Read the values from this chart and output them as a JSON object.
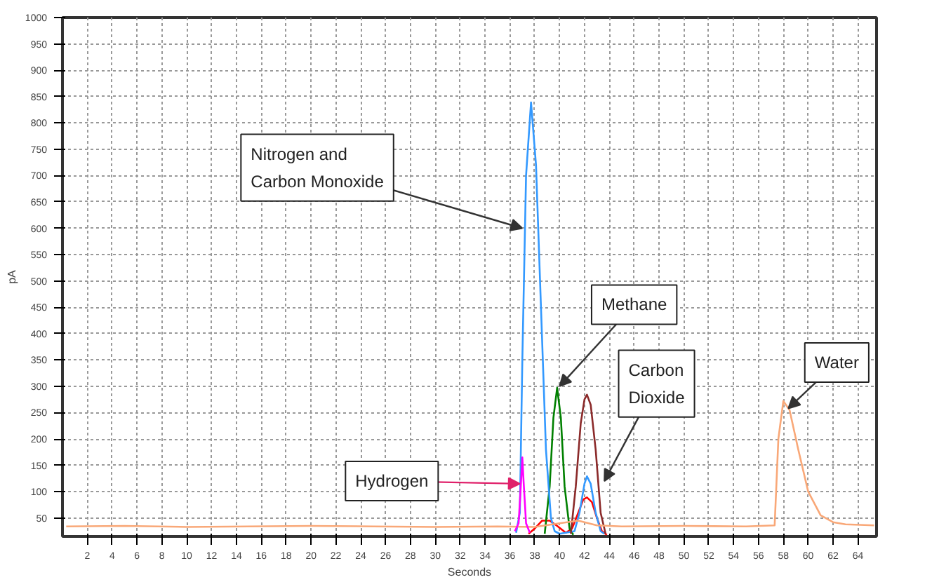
{
  "chart_data": {
    "type": "line",
    "xlabel": "Seconds",
    "ylabel": "pA",
    "xlim": [
      0,
      65.5
    ],
    "ylim": [
      15,
      1000
    ],
    "xticks": [
      2,
      4,
      6,
      8,
      10,
      12,
      14,
      16,
      18,
      20,
      22,
      24,
      26,
      28,
      30,
      32,
      34,
      36,
      38,
      40,
      42,
      44,
      46,
      48,
      50,
      52,
      54,
      56,
      58,
      60,
      62,
      64
    ],
    "yticks": [
      50,
      100,
      150,
      200,
      250,
      300,
      350,
      400,
      450,
      500,
      550,
      600,
      650,
      700,
      750,
      800,
      850,
      900,
      950,
      1000
    ],
    "grid": true,
    "marker": "none",
    "line_style": "solid",
    "series": [
      {
        "color": "#ff0000",
        "x": [
          37.5,
          38.0,
          38.6,
          39.2,
          39.8,
          40.5,
          41.0,
          41.5,
          41.9,
          42.2,
          42.6,
          43.0,
          43.4,
          43.8
        ],
        "values": [
          20,
          30,
          45,
          45,
          35,
          22,
          30,
          60,
          85,
          89,
          80,
          50,
          25,
          18
        ]
      },
      {
        "color": "#008000",
        "x": [
          38.8,
          39.2,
          39.5,
          39.8,
          40.1,
          40.4,
          40.8,
          41.1
        ],
        "values": [
          20,
          110,
          240,
          297,
          240,
          110,
          30,
          18
        ]
      },
      {
        "color": "#3399ff",
        "x": [
          36.5,
          36.8,
          37.0,
          37.3,
          37.7,
          38.1,
          38.5,
          38.9,
          39.3,
          39.6,
          40.0,
          41.2,
          41.6,
          42.0,
          42.2,
          42.5,
          42.9,
          43.3,
          43.6
        ],
        "values": [
          22,
          60,
          350,
          700,
          839,
          720,
          450,
          180,
          50,
          25,
          20,
          25,
          60,
          115,
          129,
          115,
          60,
          25,
          20
        ]
      },
      {
        "color": "#8b2a2a",
        "x": [
          40.9,
          41.3,
          41.7,
          42.0,
          42.2,
          42.5,
          42.9,
          43.3,
          43.7
        ],
        "values": [
          20,
          110,
          230,
          275,
          284,
          265,
          180,
          60,
          20
        ]
      },
      {
        "color": "#f9a878",
        "x": [
          0.3,
          5,
          10,
          15,
          20,
          25,
          30,
          35,
          38,
          40,
          41.5,
          43,
          45,
          50,
          55,
          57.3,
          57.6,
          58.0,
          58.5,
          59.2,
          60,
          61,
          62,
          63,
          65.3
        ],
        "values": [
          34,
          35,
          33,
          34,
          35,
          34,
          33,
          34,
          33,
          40,
          45,
          36,
          34,
          35,
          34,
          36,
          200,
          272,
          255,
          180,
          100,
          55,
          42,
          38,
          36
        ]
      },
      {
        "color": "#ff00ff",
        "x": [
          36.4,
          36.7,
          36.9,
          37.0,
          37.1,
          37.3,
          37.6
        ],
        "values": [
          25,
          40,
          120,
          165,
          120,
          40,
          22
        ]
      }
    ],
    "annotations": [
      {
        "text": "Nitrogen and\nCarbon Monoxide",
        "x": 37.0,
        "y": 600
      },
      {
        "text": "Methane",
        "x": 40.0,
        "y": 300
      },
      {
        "text": "Carbon\nDioxide",
        "x": 43.6,
        "y": 120
      },
      {
        "text": "Water",
        "x": 58.4,
        "y": 258
      },
      {
        "text": "Hydrogen",
        "x": 36.8,
        "y": 115
      }
    ]
  }
}
